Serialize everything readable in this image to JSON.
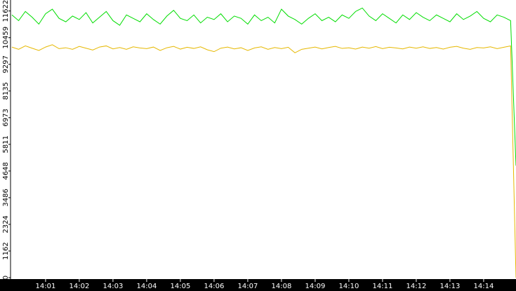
{
  "chart_data": {
    "type": "line",
    "x": [
      0,
      0.2,
      0.4,
      0.6,
      0.8,
      1,
      1.2,
      1.4,
      1.6,
      1.8,
      2,
      2.2,
      2.4,
      2.6,
      2.8,
      3,
      3.2,
      3.4,
      3.6,
      3.8,
      4,
      4.2,
      4.4,
      4.6,
      4.8,
      5,
      5.2,
      5.4,
      5.6,
      5.8,
      6,
      6.2,
      6.4,
      6.6,
      6.8,
      7,
      7.2,
      7.4,
      7.6,
      7.8,
      8,
      8.2,
      8.4,
      8.6,
      8.8,
      9,
      9.2,
      9.4,
      9.6,
      9.8,
      10,
      10.2,
      10.4,
      10.6,
      10.8,
      11,
      11.2,
      11.4,
      11.6,
      11.8,
      12,
      12.2,
      12.4,
      12.6,
      12.8,
      13,
      13.2,
      13.4,
      13.6,
      13.8,
      14,
      14.2,
      14.4,
      14.6,
      14.8,
      14.96
    ],
    "series": [
      {
        "color": "#00dd00",
        "values": [
          11450,
          11200,
          11600,
          11350,
          11050,
          11500,
          11700,
          11300,
          11150,
          11400,
          11250,
          11550,
          11100,
          11350,
          11600,
          11200,
          11000,
          11450,
          11300,
          11150,
          11500,
          11250,
          11050,
          11400,
          11650,
          11300,
          11200,
          11450,
          11100,
          11350,
          11250,
          11500,
          11150,
          11400,
          11300,
          11050,
          11450,
          11200,
          11350,
          11100,
          11700,
          11400,
          11250,
          11050,
          11300,
          11500,
          11200,
          11350,
          11150,
          11450,
          11300,
          11600,
          11750,
          11400,
          11200,
          11500,
          11300,
          11100,
          11450,
          11250,
          11550,
          11350,
          11200,
          11450,
          11300,
          11150,
          11500,
          11250,
          11400,
          11600,
          11300,
          11150,
          11450,
          11350,
          11200,
          4880
        ]
      },
      {
        "color": "#e6b800",
        "values": [
          10050,
          9950,
          10100,
          10000,
          9900,
          10050,
          10150,
          9980,
          10020,
          9950,
          10080,
          10000,
          9920,
          10050,
          10100,
          9970,
          10030,
          9950,
          10060,
          10010,
          9980,
          10050,
          9900,
          10020,
          10080,
          9960,
          10040,
          9990,
          10060,
          9930,
          9850,
          10000,
          10050,
          9970,
          10020,
          9900,
          10010,
          10060,
          9950,
          10030,
          9980,
          10040,
          9800,
          9950,
          10000,
          10050,
          9970,
          10030,
          10080,
          9990,
          10020,
          9960,
          10050,
          10000,
          10070,
          9980,
          10040,
          10010,
          9970,
          10050,
          10000,
          10060,
          9990,
          10030,
          9960,
          10040,
          10080,
          10000,
          9950,
          10030,
          10010,
          10060,
          9980,
          10040,
          10100,
          0
        ]
      }
    ],
    "xlim": [
      -0.04,
      14.96
    ],
    "xticks": [
      {
        "value": 1,
        "label": "14:01"
      },
      {
        "value": 2,
        "label": "14:02"
      },
      {
        "value": 3,
        "label": "14:03"
      },
      {
        "value": 4,
        "label": "14:04"
      },
      {
        "value": 5,
        "label": "14:05"
      },
      {
        "value": 6,
        "label": "14:06"
      },
      {
        "value": 7,
        "label": "14:07"
      },
      {
        "value": 8,
        "label": "14:08"
      },
      {
        "value": 9,
        "label": "14:09"
      },
      {
        "value": 10,
        "label": "14:10"
      },
      {
        "value": 11,
        "label": "14:11"
      },
      {
        "value": 12,
        "label": "14:12"
      },
      {
        "value": 13,
        "label": "14:13"
      },
      {
        "value": 14,
        "label": "14:14"
      }
    ],
    "ylim": [
      0,
      12100
    ],
    "yticks": [
      0,
      1162,
      2324,
      3486,
      4648,
      5811,
      6973,
      8135,
      9297,
      10459,
      11622
    ]
  }
}
